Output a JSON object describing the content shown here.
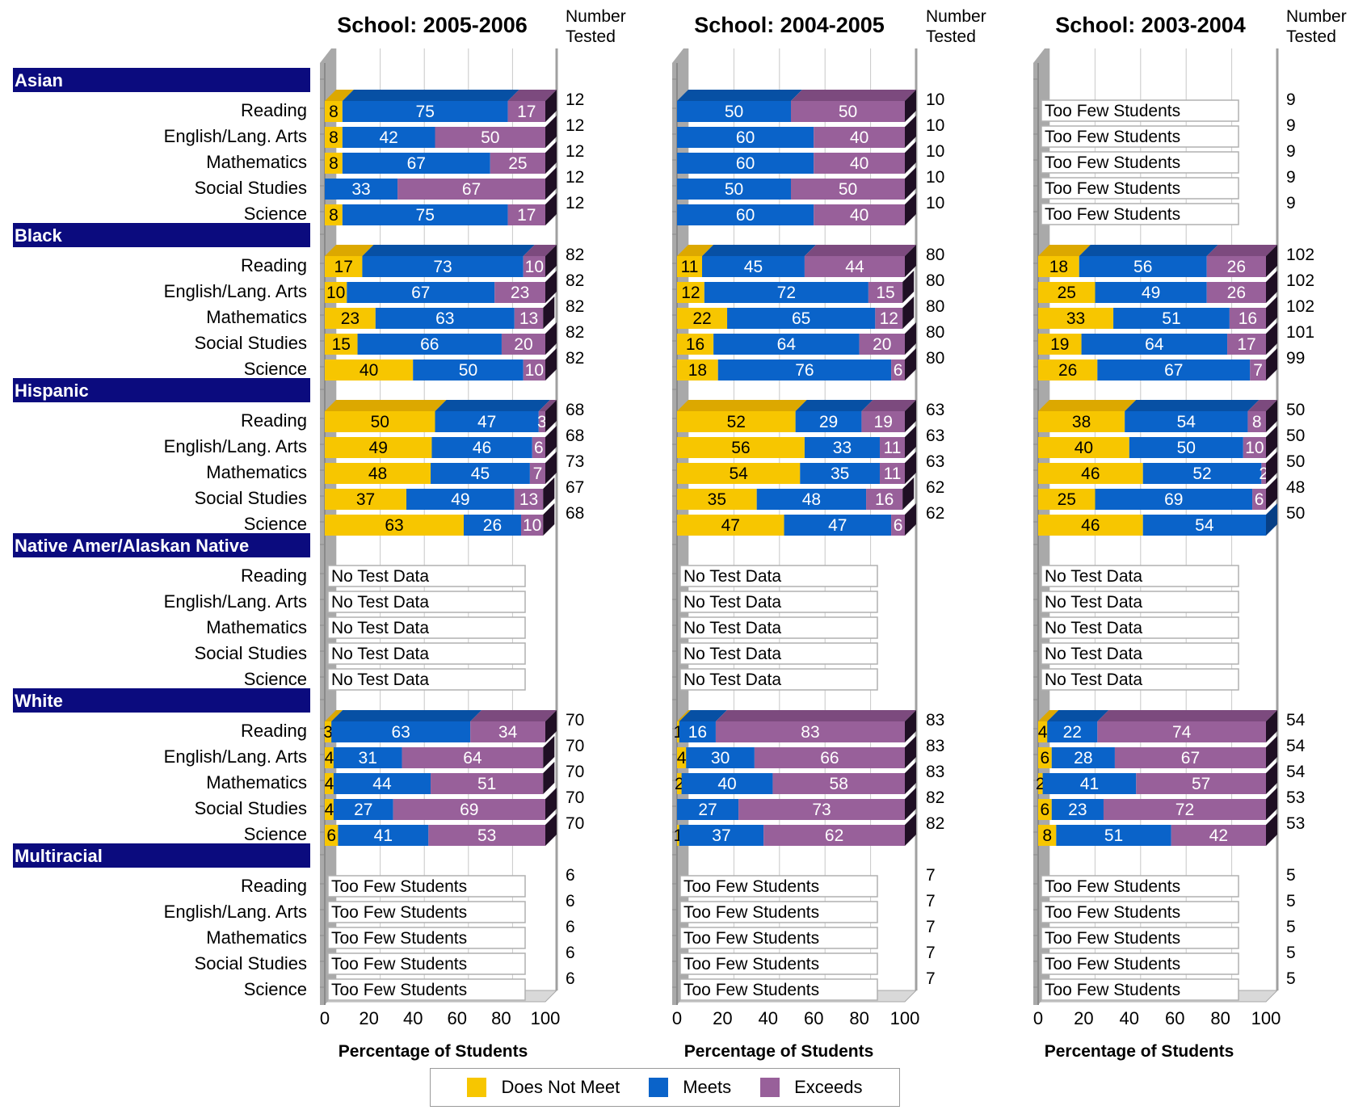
{
  "chart_data": {
    "type": "bar",
    "stacked": true,
    "orientation": "horizontal",
    "xlabel": "Percentage of Students",
    "xlim": [
      0,
      100
    ],
    "x_ticks": [
      0,
      20,
      40,
      60,
      80,
      100
    ],
    "number_tested_label": "Number Tested",
    "number_tested_label_lines": [
      "Number",
      "Tested"
    ],
    "subjects": [
      "Reading",
      "English/Lang. Arts",
      "Mathematics",
      "Social Studies",
      "Science"
    ],
    "groups": [
      "Asian",
      "Black",
      "Hispanic",
      "Native Amer/Alaskan Native",
      "White",
      "Multiracial"
    ],
    "legend": [
      {
        "name": "Does Not Meet",
        "color": "#f7c600"
      },
      {
        "name": "Meets",
        "color": "#0a63c9"
      },
      {
        "name": "Exceeds",
        "color": "#98609a"
      }
    ],
    "colors": {
      "does_not_meet": "#f7c600",
      "meets": "#0a63c9",
      "exceeds": "#98609a",
      "group_header": "#0b0b7e"
    },
    "panels": [
      {
        "title": "School: 2005-2006",
        "groups": [
          {
            "name": "Asian",
            "rows": [
              {
                "values": [
                  8,
                  75,
                  17
                ],
                "tested": 12
              },
              {
                "values": [
                  8,
                  42,
                  50
                ],
                "tested": 12
              },
              {
                "values": [
                  8,
                  67,
                  25
                ],
                "tested": 12
              },
              {
                "values": [
                  0,
                  33,
                  67
                ],
                "tested": 12
              },
              {
                "values": [
                  8,
                  75,
                  17
                ],
                "tested": 12
              }
            ]
          },
          {
            "name": "Black",
            "rows": [
              {
                "values": [
                  17,
                  73,
                  10
                ],
                "tested": 82
              },
              {
                "values": [
                  10,
                  67,
                  23
                ],
                "tested": 82
              },
              {
                "values": [
                  23,
                  63,
                  13
                ],
                "tested": 82
              },
              {
                "values": [
                  15,
                  66,
                  20
                ],
                "tested": 82
              },
              {
                "values": [
                  40,
                  50,
                  10
                ],
                "tested": 82
              }
            ]
          },
          {
            "name": "Hispanic",
            "rows": [
              {
                "values": [
                  50,
                  47,
                  3
                ],
                "tested": 68
              },
              {
                "values": [
                  49,
                  46,
                  6
                ],
                "tested": 68
              },
              {
                "values": [
                  48,
                  45,
                  7
                ],
                "tested": 73
              },
              {
                "values": [
                  37,
                  49,
                  13
                ],
                "tested": 67
              },
              {
                "values": [
                  63,
                  26,
                  10
                ],
                "tested": 68
              }
            ]
          },
          {
            "name": "Native Amer/Alaskan Native",
            "rows": [
              {
                "note": "No Test Data"
              },
              {
                "note": "No Test Data"
              },
              {
                "note": "No Test Data"
              },
              {
                "note": "No Test Data"
              },
              {
                "note": "No Test Data"
              }
            ]
          },
          {
            "name": "White",
            "rows": [
              {
                "values": [
                  3,
                  63,
                  34
                ],
                "tested": 70
              },
              {
                "values": [
                  4,
                  31,
                  64
                ],
                "tested": 70
              },
              {
                "values": [
                  4,
                  44,
                  51
                ],
                "tested": 70
              },
              {
                "values": [
                  4,
                  27,
                  69
                ],
                "tested": 70
              },
              {
                "values": [
                  6,
                  41,
                  53
                ],
                "tested": 70
              }
            ]
          },
          {
            "name": "Multiracial",
            "rows": [
              {
                "note": "Too Few Students",
                "tested": 6
              },
              {
                "note": "Too Few Students",
                "tested": 6
              },
              {
                "note": "Too Few Students",
                "tested": 6
              },
              {
                "note": "Too Few Students",
                "tested": 6
              },
              {
                "note": "Too Few Students",
                "tested": 6
              }
            ]
          }
        ]
      },
      {
        "title": "School: 2004-2005",
        "groups": [
          {
            "name": "Asian",
            "rows": [
              {
                "values": [
                  0,
                  50,
                  50
                ],
                "tested": 10
              },
              {
                "values": [
                  0,
                  60,
                  40
                ],
                "tested": 10
              },
              {
                "values": [
                  0,
                  60,
                  40
                ],
                "tested": 10
              },
              {
                "values": [
                  0,
                  50,
                  50
                ],
                "tested": 10
              },
              {
                "values": [
                  0,
                  60,
                  40
                ],
                "tested": 10
              }
            ]
          },
          {
            "name": "Black",
            "rows": [
              {
                "values": [
                  11,
                  45,
                  44
                ],
                "tested": 80
              },
              {
                "values": [
                  12,
                  72,
                  15
                ],
                "tested": 80
              },
              {
                "values": [
                  22,
                  65,
                  12
                ],
                "tested": 80
              },
              {
                "values": [
                  16,
                  64,
                  20
                ],
                "tested": 80
              },
              {
                "values": [
                  18,
                  76,
                  6
                ],
                "tested": 80
              }
            ]
          },
          {
            "name": "Hispanic",
            "rows": [
              {
                "values": [
                  52,
                  29,
                  19
                ],
                "tested": 63
              },
              {
                "values": [
                  56,
                  33,
                  11
                ],
                "tested": 63
              },
              {
                "values": [
                  54,
                  35,
                  11
                ],
                "tested": 63
              },
              {
                "values": [
                  35,
                  48,
                  16
                ],
                "tested": 62
              },
              {
                "values": [
                  47,
                  47,
                  6
                ],
                "tested": 62
              }
            ]
          },
          {
            "name": "Native Amer/Alaskan Native",
            "rows": [
              {
                "note": "No Test Data"
              },
              {
                "note": "No Test Data"
              },
              {
                "note": "No Test Data"
              },
              {
                "note": "No Test Data"
              },
              {
                "note": "No Test Data"
              }
            ]
          },
          {
            "name": "White",
            "rows": [
              {
                "values": [
                  1,
                  16,
                  83
                ],
                "tested": 83
              },
              {
                "values": [
                  4,
                  30,
                  66
                ],
                "tested": 83
              },
              {
                "values": [
                  2,
                  40,
                  58
                ],
                "tested": 83
              },
              {
                "values": [
                  0,
                  27,
                  73
                ],
                "tested": 82
              },
              {
                "values": [
                  1,
                  37,
                  62
                ],
                "tested": 82
              }
            ]
          },
          {
            "name": "Multiracial",
            "rows": [
              {
                "note": "Too Few Students",
                "tested": 7
              },
              {
                "note": "Too Few Students",
                "tested": 7
              },
              {
                "note": "Too Few Students",
                "tested": 7
              },
              {
                "note": "Too Few Students",
                "tested": 7
              },
              {
                "note": "Too Few Students",
                "tested": 7
              }
            ]
          }
        ]
      },
      {
        "title": "School: 2003-2004",
        "groups": [
          {
            "name": "Asian",
            "rows": [
              {
                "note": "Too Few Students",
                "tested": 9
              },
              {
                "note": "Too Few Students",
                "tested": 9
              },
              {
                "note": "Too Few Students",
                "tested": 9
              },
              {
                "note": "Too Few Students",
                "tested": 9
              },
              {
                "note": "Too Few Students",
                "tested": 9
              }
            ]
          },
          {
            "name": "Black",
            "rows": [
              {
                "values": [
                  18,
                  56,
                  26
                ],
                "tested": 102
              },
              {
                "values": [
                  25,
                  49,
                  26
                ],
                "tested": 102
              },
              {
                "values": [
                  33,
                  51,
                  16
                ],
                "tested": 102
              },
              {
                "values": [
                  19,
                  64,
                  17
                ],
                "tested": 101
              },
              {
                "values": [
                  26,
                  67,
                  7
                ],
                "tested": 99
              }
            ]
          },
          {
            "name": "Hispanic",
            "rows": [
              {
                "values": [
                  38,
                  54,
                  8
                ],
                "tested": 50
              },
              {
                "values": [
                  40,
                  50,
                  10
                ],
                "tested": 50
              },
              {
                "values": [
                  46,
                  52,
                  2
                ],
                "tested": 50
              },
              {
                "values": [
                  25,
                  69,
                  6
                ],
                "tested": 48
              },
              {
                "values": [
                  46,
                  54,
                  0
                ],
                "tested": 50
              }
            ]
          },
          {
            "name": "Native Amer/Alaskan Native",
            "rows": [
              {
                "note": "No Test Data"
              },
              {
                "note": "No Test Data"
              },
              {
                "note": "No Test Data"
              },
              {
                "note": "No Test Data"
              },
              {
                "note": "No Test Data"
              }
            ]
          },
          {
            "name": "White",
            "rows": [
              {
                "values": [
                  4,
                  22,
                  74
                ],
                "tested": 54
              },
              {
                "values": [
                  6,
                  28,
                  67
                ],
                "tested": 54
              },
              {
                "values": [
                  2,
                  41,
                  57
                ],
                "tested": 54
              },
              {
                "values": [
                  6,
                  23,
                  72
                ],
                "tested": 53
              },
              {
                "values": [
                  8,
                  51,
                  42
                ],
                "tested": 53
              }
            ]
          },
          {
            "name": "Multiracial",
            "rows": [
              {
                "note": "Too Few Students",
                "tested": 5
              },
              {
                "note": "Too Few Students",
                "tested": 5
              },
              {
                "note": "Too Few Students",
                "tested": 5
              },
              {
                "note": "Too Few Students",
                "tested": 5
              },
              {
                "note": "Too Few Students",
                "tested": 5
              }
            ]
          }
        ]
      }
    ]
  }
}
